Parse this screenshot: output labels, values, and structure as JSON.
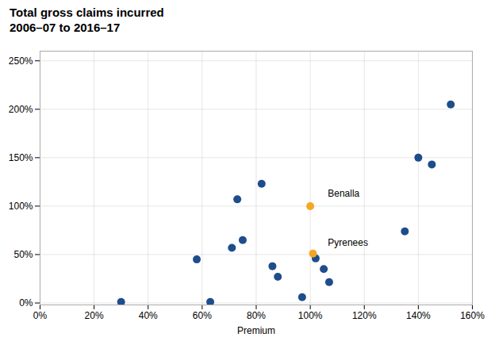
{
  "chart_data": {
    "type": "scatter",
    "title": "Total gross claims incurred",
    "subtitle": "2006–07 to 2016–17",
    "xlabel": "Premium",
    "series": [
      {
        "color": "#1e4d8c",
        "x": [
          0.3,
          0.58,
          0.63,
          0.71,
          0.73,
          0.75,
          0.82,
          0.86,
          0.88,
          0.97,
          1.02,
          1.05,
          1.07,
          1.35,
          1.4,
          1.45,
          1.52
        ],
        "values": [
          0.01,
          0.45,
          0.01,
          0.57,
          1.07,
          0.65,
          1.23,
          0.38,
          0.27,
          0.06,
          0.46,
          0.35,
          0.215,
          0.74,
          1.5,
          1.43,
          2.05
        ]
      },
      {
        "color": "#f5a623",
        "x": [
          1.0,
          1.01
        ],
        "values": [
          1.0,
          0.51
        ]
      }
    ],
    "annotations": [
      {
        "text": "Benalla",
        "x": 1.065,
        "y": 1.13
      },
      {
        "text": "Pyrenees",
        "x": 1.065,
        "y": 0.62
      }
    ],
    "xlim": [
      0.0,
      1.6
    ],
    "ylim": [
      -0.02,
      2.6
    ],
    "xticks": [
      {
        "value": 0.0,
        "label": "0%"
      },
      {
        "value": 0.2,
        "label": "20%"
      },
      {
        "value": 0.4,
        "label": "40%"
      },
      {
        "value": 0.6,
        "label": "60%"
      },
      {
        "value": 0.8,
        "label": "80%"
      },
      {
        "value": 1.0,
        "label": "100%"
      },
      {
        "value": 1.2,
        "label": "120%"
      },
      {
        "value": 1.4,
        "label": "140%"
      },
      {
        "value": 1.6,
        "label": "160%"
      }
    ],
    "yticks": [
      {
        "value": 0.0,
        "label": "0%"
      },
      {
        "value": 0.5,
        "label": "50%"
      },
      {
        "value": 1.0,
        "label": "100%"
      },
      {
        "value": 1.5,
        "label": "150%"
      },
      {
        "value": 2.0,
        "label": "200%"
      },
      {
        "value": 2.5,
        "label": "250%"
      }
    ],
    "grid": true
  }
}
